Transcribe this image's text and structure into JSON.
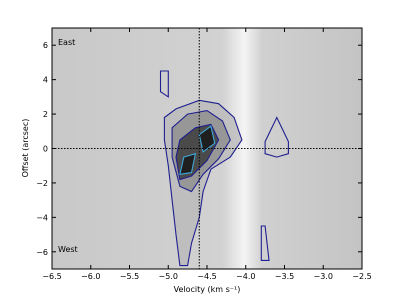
{
  "chart_data": {
    "type": "contour",
    "xlabel": "Velocity (km s⁻¹)",
    "ylabel": "Offset (arcsec)",
    "annotations": [
      "East",
      "West"
    ],
    "xlim": [
      -6.5,
      -2.5
    ],
    "ylim": [
      -7,
      7
    ],
    "xticks": [
      {
        "value": -6.5,
        "label": "−6.5"
      },
      {
        "value": -6.0,
        "label": "−6.0"
      },
      {
        "value": -5.5,
        "label": "−5.5"
      },
      {
        "value": -5.0,
        "label": "−5.0"
      },
      {
        "value": -4.5,
        "label": "−4.5"
      },
      {
        "value": -4.0,
        "label": "−4.0"
      },
      {
        "value": -3.5,
        "label": "−3.5"
      },
      {
        "value": -3.0,
        "label": "−3.0"
      },
      {
        "value": -2.5,
        "label": "−2.5"
      }
    ],
    "yticks": [
      {
        "value": -6,
        "label": "−6"
      },
      {
        "value": -4,
        "label": "−4"
      },
      {
        "value": -2,
        "label": "−2"
      },
      0,
      2,
      4,
      6
    ],
    "vline": -4.6,
    "hline": 0,
    "contours": [
      {
        "color": "#1f1f8f",
        "fill": "#b8b8b8",
        "x": [
          -5.05,
          -4.9,
          -4.6,
          -4.35,
          -4.15,
          -4.05,
          -4.2,
          -4.45,
          -4.55,
          -4.6,
          -4.7,
          -4.75,
          -4.85,
          -4.9,
          -4.95,
          -5.0,
          -5.05
        ],
        "y": [
          1.8,
          2.3,
          2.8,
          2.6,
          1.8,
          0.5,
          -0.5,
          -1.2,
          -2.5,
          -4,
          -5.5,
          -6.8,
          -6.8,
          -5,
          -3,
          -1,
          0.5
        ]
      },
      {
        "color": "#1f1f8f",
        "fill": "#8a8a8a",
        "x": [
          -4.95,
          -4.75,
          -4.5,
          -4.3,
          -4.2,
          -4.35,
          -4.55,
          -4.7,
          -4.85,
          -4.95
        ],
        "y": [
          1.2,
          2.0,
          2.2,
          1.6,
          0.5,
          -0.6,
          -1.5,
          -2.5,
          -2.2,
          -0.5
        ]
      },
      {
        "color": "#1f1f8f",
        "fill": "#303030",
        "x": [
          -4.85,
          -4.65,
          -4.45,
          -4.35,
          -4.5,
          -4.7,
          -4.85,
          -4.9
        ],
        "y": [
          0.5,
          1.2,
          1.4,
          0.5,
          -0.7,
          -1.6,
          -1.8,
          -0.5
        ]
      },
      {
        "color": "#3fa7d8",
        "fill": "#111111",
        "x": [
          -4.6,
          -4.45,
          -4.4,
          -4.55
        ],
        "y": [
          0.8,
          1.3,
          0.3,
          -0.2
        ]
      },
      {
        "color": "#3fa7d8",
        "fill": "#111111",
        "x": [
          -4.8,
          -4.65,
          -4.7,
          -4.85
        ],
        "y": [
          -0.5,
          -0.3,
          -1.4,
          -1.5
        ]
      },
      {
        "color": "#1f1f8f",
        "fill": "none",
        "x": [
          -3.75,
          -3.6,
          -3.45,
          -3.45,
          -3.6,
          -3.75
        ],
        "y": [
          0.4,
          1.8,
          0.4,
          -0.3,
          -0.5,
          -0.3
        ]
      },
      {
        "color": "#1f1f8f",
        "fill": "none",
        "x": [
          -5.1,
          -5.0,
          -5.0,
          -5.1
        ],
        "y": [
          4.5,
          4.5,
          3.0,
          3.3
        ]
      },
      {
        "color": "#1f1f8f",
        "fill": "none",
        "x": [
          -3.8,
          -3.75,
          -3.7,
          -3.8
        ],
        "y": [
          -4.5,
          -4.5,
          -6.5,
          -6.5
        ]
      }
    ]
  }
}
